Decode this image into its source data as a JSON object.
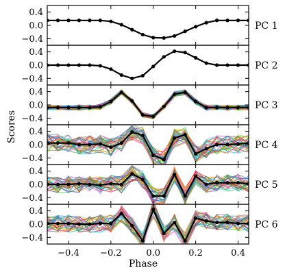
{
  "chart_data": {
    "type": "line",
    "xlabel": "Phase",
    "ylabel": "Scores",
    "xlim": [
      -0.5,
      0.45
    ],
    "ylim": [
      -0.6,
      0.6
    ],
    "xticks": [
      -0.4,
      -0.2,
      0.0,
      0.2,
      0.4
    ],
    "xtick_labels": [
      "−0.4",
      "−0.2",
      "0.0",
      "0.2",
      "0.4"
    ],
    "yticks": [
      0.4,
      0.0,
      -0.4
    ],
    "ytick_labels": [
      "0.4",
      "0.0",
      "−0.4"
    ],
    "phase": [
      -0.5,
      -0.45,
      -0.4,
      -0.35,
      -0.3,
      -0.25,
      -0.2,
      -0.15,
      -0.1,
      -0.05,
      0.0,
      0.05,
      0.1,
      0.15,
      0.2,
      0.25,
      0.3,
      0.35,
      0.4,
      0.45
    ],
    "panels": [
      {
        "label": "PC 1",
        "highlight": [
          0.15,
          0.15,
          0.15,
          0.15,
          0.15,
          0.15,
          0.12,
          0.02,
          -0.13,
          -0.28,
          -0.37,
          -0.38,
          -0.32,
          -0.18,
          -0.04,
          0.08,
          0.15,
          0.15,
          0.15,
          0.15
        ],
        "background_count": 0,
        "background_spread": 0.0
      },
      {
        "label": "PC 2",
        "highlight": [
          0.0,
          0.0,
          0.0,
          0.0,
          0.0,
          -0.02,
          -0.12,
          -0.3,
          -0.4,
          -0.32,
          -0.04,
          0.25,
          0.42,
          0.38,
          0.22,
          0.06,
          0.0,
          0.0,
          0.0,
          0.0
        ],
        "background_count": 0,
        "background_spread": 0.0
      },
      {
        "label": "PC 3",
        "highlight": [
          -0.08,
          -0.08,
          -0.08,
          -0.08,
          -0.08,
          -0.06,
          0.1,
          0.38,
          0.12,
          -0.3,
          -0.35,
          -0.05,
          0.32,
          0.38,
          0.1,
          -0.08,
          -0.08,
          -0.08,
          -0.08,
          -0.08
        ],
        "background_count": 30,
        "background_spread": 0.08
      },
      {
        "label": "PC 4",
        "highlight": [
          0.05,
          0.05,
          0.05,
          0.0,
          0.0,
          0.02,
          -0.08,
          0.05,
          0.38,
          0.28,
          -0.32,
          -0.45,
          0.2,
          0.3,
          -0.28,
          -0.12,
          0.0,
          0.0,
          0.02,
          0.05
        ],
        "background_count": 30,
        "background_spread": 0.28
      },
      {
        "label": "PC 5",
        "highlight": [
          0.0,
          0.0,
          0.0,
          0.02,
          0.0,
          -0.02,
          0.02,
          0.0,
          0.32,
          0.15,
          -0.35,
          -0.35,
          0.3,
          -0.35,
          0.25,
          0.0,
          0.05,
          0.05,
          0.05,
          0.02
        ],
        "background_count": 30,
        "background_spread": 0.26
      },
      {
        "label": "PC 6",
        "highlight": [
          0.02,
          0.02,
          0.02,
          0.0,
          0.0,
          0.02,
          0.02,
          0.32,
          -0.05,
          -0.5,
          0.45,
          -0.28,
          0.05,
          -0.5,
          0.18,
          0.1,
          0.05,
          0.05,
          0.02,
          0.02
        ],
        "background_count": 30,
        "background_spread": 0.26
      }
    ],
    "colors": {
      "highlight": "#000000",
      "palette": [
        "#e41a1c",
        "#377eb8",
        "#4daf4a",
        "#984ea3",
        "#ff7f00",
        "#c8c800",
        "#a65628",
        "#f781bf",
        "#17becf",
        "#1f77b4",
        "#2ca02c",
        "#d62728",
        "#9467bd",
        "#8c564b",
        "#bcbd22",
        "#7f7f7f",
        "#00ced1",
        "#ff1493",
        "#32cd32",
        "#4169e1"
      ]
    }
  }
}
